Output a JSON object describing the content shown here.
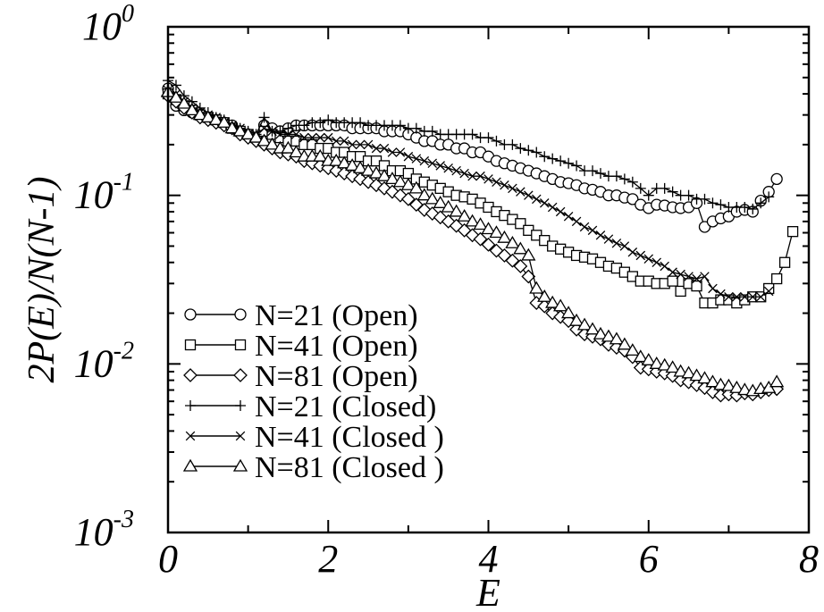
{
  "chart_data": {
    "type": "line",
    "title": "",
    "xlabel": "E",
    "ylabel": "2P(E)/N(N-1)",
    "xlim": [
      0,
      8
    ],
    "ylim": [
      0.001,
      1
    ],
    "y_scale": "log",
    "grid": false,
    "legend_position": "bottom-left",
    "x_ticks": [
      {
        "value": 0,
        "label": "0"
      },
      {
        "value": 2,
        "label": "2"
      },
      {
        "value": 4,
        "label": "4"
      },
      {
        "value": 6,
        "label": "6"
      },
      {
        "value": 8,
        "label": "8"
      }
    ],
    "y_ticks": [
      {
        "value": 1,
        "base": "10",
        "exp": "0"
      },
      {
        "value": 0.1,
        "base": "10",
        "exp": "-1"
      },
      {
        "value": 0.01,
        "base": "10",
        "exp": "-2"
      },
      {
        "value": 0.001,
        "base": "10",
        "exp": "-3"
      }
    ],
    "series": [
      {
        "name": "N=21 (Open)",
        "marker": "circle",
        "x": [
          0.0,
          0.1,
          0.2,
          0.3,
          0.4,
          0.5,
          0.6,
          0.7,
          0.8,
          0.9,
          1.0,
          1.1,
          1.2,
          1.3,
          1.4,
          1.5,
          1.6,
          1.7,
          1.8,
          1.9,
          2.0,
          2.1,
          2.2,
          2.3,
          2.4,
          2.5,
          2.6,
          2.7,
          2.8,
          2.9,
          3.0,
          3.1,
          3.2,
          3.3,
          3.4,
          3.5,
          3.6,
          3.7,
          3.8,
          3.9,
          4.0,
          4.1,
          4.2,
          4.3,
          4.4,
          4.5,
          4.6,
          4.7,
          4.8,
          4.9,
          5.0,
          5.1,
          5.2,
          5.3,
          5.4,
          5.5,
          5.6,
          5.7,
          5.8,
          5.9,
          6.0,
          6.1,
          6.2,
          6.3,
          6.4,
          6.5,
          6.6,
          6.7,
          6.8,
          6.9,
          7.0,
          7.1,
          7.2,
          7.3,
          7.4,
          7.5,
          7.6
        ],
        "values": [
          0.43,
          0.34,
          0.32,
          0.31,
          0.3,
          0.29,
          0.28,
          0.27,
          0.26,
          0.24,
          0.23,
          0.22,
          0.26,
          0.25,
          0.24,
          0.25,
          0.26,
          0.26,
          0.26,
          0.26,
          0.26,
          0.26,
          0.26,
          0.25,
          0.25,
          0.25,
          0.25,
          0.24,
          0.24,
          0.24,
          0.23,
          0.22,
          0.21,
          0.21,
          0.2,
          0.2,
          0.19,
          0.19,
          0.18,
          0.18,
          0.17,
          0.16,
          0.155,
          0.15,
          0.145,
          0.14,
          0.135,
          0.13,
          0.125,
          0.12,
          0.118,
          0.115,
          0.11,
          0.108,
          0.105,
          0.1,
          0.1,
          0.097,
          0.095,
          0.088,
          0.084,
          0.088,
          0.087,
          0.085,
          0.084,
          0.085,
          0.09,
          0.065,
          0.07,
          0.073,
          0.075,
          0.08,
          0.082,
          0.08,
          0.093,
          0.105,
          0.125
        ]
      },
      {
        "name": "N=41 (Open)",
        "marker": "square",
        "x": [
          0.0,
          0.1,
          0.2,
          0.3,
          0.4,
          0.5,
          0.6,
          0.7,
          0.8,
          0.9,
          1.0,
          1.1,
          1.2,
          1.3,
          1.4,
          1.5,
          1.6,
          1.7,
          1.8,
          1.9,
          2.0,
          2.1,
          2.2,
          2.3,
          2.4,
          2.5,
          2.6,
          2.7,
          2.8,
          2.9,
          3.0,
          3.1,
          3.2,
          3.3,
          3.4,
          3.5,
          3.6,
          3.7,
          3.8,
          3.9,
          4.0,
          4.1,
          4.2,
          4.3,
          4.4,
          4.5,
          4.6,
          4.7,
          4.8,
          4.9,
          5.0,
          5.1,
          5.2,
          5.3,
          5.4,
          5.5,
          5.6,
          5.7,
          5.8,
          5.9,
          6.0,
          6.1,
          6.2,
          6.3,
          6.4,
          6.5,
          6.6,
          6.7,
          6.8,
          6.9,
          7.0,
          7.1,
          7.2,
          7.3,
          7.4,
          7.5,
          7.6,
          7.7,
          7.8
        ],
        "values": [
          0.4,
          0.37,
          0.34,
          0.32,
          0.3,
          0.29,
          0.28,
          0.27,
          0.25,
          0.24,
          0.23,
          0.22,
          0.24,
          0.23,
          0.22,
          0.21,
          0.21,
          0.2,
          0.2,
          0.19,
          0.19,
          0.18,
          0.18,
          0.17,
          0.17,
          0.16,
          0.16,
          0.15,
          0.14,
          0.14,
          0.135,
          0.125,
          0.12,
          0.115,
          0.11,
          0.105,
          0.1,
          0.098,
          0.095,
          0.09,
          0.085,
          0.08,
          0.076,
          0.072,
          0.068,
          0.062,
          0.058,
          0.054,
          0.05,
          0.048,
          0.046,
          0.044,
          0.043,
          0.042,
          0.04,
          0.038,
          0.037,
          0.035,
          0.033,
          0.031,
          0.031,
          0.03,
          0.03,
          0.031,
          0.027,
          0.03,
          0.029,
          0.023,
          0.023,
          0.024,
          0.024,
          0.023,
          0.024,
          0.025,
          0.025,
          0.028,
          0.032,
          0.04,
          0.061
        ]
      },
      {
        "name": "N=81 (Open)",
        "marker": "diamond",
        "x": [
          0.0,
          0.1,
          0.2,
          0.3,
          0.4,
          0.5,
          0.6,
          0.7,
          0.8,
          0.9,
          1.0,
          1.1,
          1.2,
          1.3,
          1.4,
          1.5,
          1.6,
          1.7,
          1.8,
          1.9,
          2.0,
          2.1,
          2.2,
          2.3,
          2.4,
          2.5,
          2.6,
          2.7,
          2.8,
          2.9,
          3.0,
          3.1,
          3.2,
          3.3,
          3.4,
          3.5,
          3.6,
          3.7,
          3.8,
          3.9,
          4.0,
          4.1,
          4.2,
          4.3,
          4.4,
          4.5,
          4.6,
          4.7,
          4.8,
          4.9,
          5.0,
          5.1,
          5.2,
          5.3,
          5.4,
          5.5,
          5.6,
          5.7,
          5.8,
          5.9,
          6.0,
          6.1,
          6.2,
          6.3,
          6.4,
          6.5,
          6.6,
          6.7,
          6.8,
          6.9,
          7.0,
          7.1,
          7.2,
          7.3,
          7.4,
          7.5,
          7.6
        ],
        "values": [
          0.39,
          0.36,
          0.33,
          0.31,
          0.29,
          0.28,
          0.27,
          0.26,
          0.25,
          0.23,
          0.22,
          0.21,
          0.2,
          0.19,
          0.18,
          0.175,
          0.17,
          0.16,
          0.155,
          0.15,
          0.145,
          0.14,
          0.135,
          0.13,
          0.125,
          0.12,
          0.115,
          0.11,
          0.105,
          0.1,
          0.095,
          0.088,
          0.082,
          0.078,
          0.074,
          0.07,
          0.066,
          0.062,
          0.058,
          0.055,
          0.051,
          0.047,
          0.044,
          0.041,
          0.038,
          0.033,
          0.023,
          0.022,
          0.02,
          0.019,
          0.018,
          0.016,
          0.015,
          0.0145,
          0.014,
          0.013,
          0.0125,
          0.012,
          0.011,
          0.0095,
          0.0093,
          0.009,
          0.0088,
          0.0085,
          0.008,
          0.0078,
          0.0075,
          0.0072,
          0.0068,
          0.0065,
          0.0066,
          0.0065,
          0.0067,
          0.0066,
          0.0068,
          0.007,
          0.0071
        ]
      },
      {
        "name": "N=21 (Closed)",
        "marker": "plus",
        "x": [
          0.0,
          0.1,
          0.2,
          0.3,
          0.4,
          0.5,
          0.6,
          0.7,
          0.8,
          0.9,
          1.0,
          1.1,
          1.2,
          1.3,
          1.4,
          1.5,
          1.6,
          1.7,
          1.8,
          1.9,
          2.0,
          2.1,
          2.2,
          2.3,
          2.4,
          2.5,
          2.6,
          2.7,
          2.8,
          2.9,
          3.0,
          3.1,
          3.2,
          3.3,
          3.4,
          3.5,
          3.6,
          3.7,
          3.8,
          3.9,
          4.0,
          4.1,
          4.2,
          4.3,
          4.4,
          4.5,
          4.6,
          4.7,
          4.8,
          4.9,
          5.0,
          5.1,
          5.2,
          5.3,
          5.4,
          5.5,
          5.6,
          5.7,
          5.8,
          5.9,
          6.0,
          6.1,
          6.2,
          6.3,
          6.4,
          6.5,
          6.6,
          6.7,
          6.8,
          6.9,
          7.0,
          7.1,
          7.2,
          7.3,
          7.4,
          7.5
        ],
        "values": [
          0.48,
          0.45,
          0.39,
          0.36,
          0.33,
          0.31,
          0.29,
          0.28,
          0.26,
          0.25,
          0.24,
          0.23,
          0.29,
          0.24,
          0.24,
          0.25,
          0.26,
          0.26,
          0.27,
          0.27,
          0.28,
          0.27,
          0.27,
          0.27,
          0.27,
          0.26,
          0.26,
          0.26,
          0.26,
          0.26,
          0.25,
          0.25,
          0.24,
          0.24,
          0.23,
          0.23,
          0.23,
          0.23,
          0.23,
          0.22,
          0.22,
          0.21,
          0.2,
          0.2,
          0.19,
          0.185,
          0.18,
          0.17,
          0.165,
          0.16,
          0.155,
          0.15,
          0.14,
          0.14,
          0.135,
          0.13,
          0.13,
          0.125,
          0.12,
          0.11,
          0.1,
          0.11,
          0.11,
          0.105,
          0.1,
          0.1,
          0.095,
          0.095,
          0.09,
          0.088,
          0.085,
          0.085,
          0.085,
          0.083,
          0.09,
          0.098
        ]
      },
      {
        "name": "N=41 (Closed )",
        "marker": "cross",
        "x": [
          0.0,
          0.1,
          0.2,
          0.3,
          0.4,
          0.5,
          0.6,
          0.7,
          0.8,
          0.9,
          1.0,
          1.1,
          1.2,
          1.3,
          1.4,
          1.5,
          1.6,
          1.7,
          1.8,
          1.9,
          2.0,
          2.1,
          2.2,
          2.3,
          2.4,
          2.5,
          2.6,
          2.7,
          2.8,
          2.9,
          3.0,
          3.1,
          3.2,
          3.3,
          3.4,
          3.5,
          3.6,
          3.7,
          3.8,
          3.9,
          4.0,
          4.1,
          4.2,
          4.3,
          4.4,
          4.5,
          4.6,
          4.7,
          4.8,
          4.9,
          5.0,
          5.1,
          5.2,
          5.3,
          5.4,
          5.5,
          5.6,
          5.7,
          5.8,
          5.9,
          6.0,
          6.1,
          6.2,
          6.3,
          6.4,
          6.5,
          6.6,
          6.7,
          6.8,
          6.9,
          7.0,
          7.1,
          7.2,
          7.3,
          7.4,
          7.5
        ],
        "values": [
          0.42,
          0.4,
          0.36,
          0.33,
          0.31,
          0.3,
          0.29,
          0.27,
          0.26,
          0.25,
          0.23,
          0.23,
          0.25,
          0.24,
          0.23,
          0.23,
          0.23,
          0.22,
          0.22,
          0.22,
          0.22,
          0.21,
          0.21,
          0.2,
          0.2,
          0.2,
          0.19,
          0.19,
          0.18,
          0.18,
          0.17,
          0.165,
          0.16,
          0.155,
          0.15,
          0.145,
          0.14,
          0.135,
          0.13,
          0.13,
          0.125,
          0.12,
          0.115,
          0.11,
          0.105,
          0.1,
          0.095,
          0.09,
          0.085,
          0.08,
          0.075,
          0.07,
          0.065,
          0.062,
          0.058,
          0.055,
          0.052,
          0.05,
          0.046,
          0.044,
          0.042,
          0.04,
          0.038,
          0.035,
          0.034,
          0.033,
          0.032,
          0.033,
          0.028,
          0.026,
          0.025,
          0.025,
          0.025,
          0.025,
          0.025,
          0.027
        ]
      },
      {
        "name": "N=81 (Closed )",
        "marker": "triangle",
        "x": [
          0.0,
          0.1,
          0.2,
          0.3,
          0.4,
          0.5,
          0.6,
          0.7,
          0.8,
          0.9,
          1.0,
          1.1,
          1.2,
          1.3,
          1.4,
          1.5,
          1.6,
          1.7,
          1.8,
          1.9,
          2.0,
          2.1,
          2.2,
          2.3,
          2.4,
          2.5,
          2.6,
          2.7,
          2.8,
          2.9,
          3.0,
          3.1,
          3.2,
          3.3,
          3.4,
          3.5,
          3.6,
          3.7,
          3.8,
          3.9,
          4.0,
          4.1,
          4.2,
          4.3,
          4.4,
          4.5,
          4.6,
          4.7,
          4.8,
          4.9,
          5.0,
          5.1,
          5.2,
          5.3,
          5.4,
          5.5,
          5.6,
          5.7,
          5.8,
          5.9,
          6.0,
          6.1,
          6.2,
          6.3,
          6.4,
          6.5,
          6.6,
          6.7,
          6.8,
          6.9,
          7.0,
          7.1,
          7.2,
          7.3,
          7.4,
          7.5,
          7.6
        ],
        "values": [
          0.41,
          0.38,
          0.35,
          0.32,
          0.3,
          0.29,
          0.28,
          0.27,
          0.25,
          0.24,
          0.23,
          0.22,
          0.21,
          0.2,
          0.19,
          0.19,
          0.18,
          0.17,
          0.17,
          0.17,
          0.16,
          0.16,
          0.155,
          0.15,
          0.145,
          0.14,
          0.135,
          0.13,
          0.125,
          0.12,
          0.115,
          0.11,
          0.1,
          0.095,
          0.09,
          0.085,
          0.08,
          0.075,
          0.07,
          0.067,
          0.063,
          0.06,
          0.056,
          0.052,
          0.048,
          0.044,
          0.028,
          0.025,
          0.023,
          0.022,
          0.02,
          0.018,
          0.017,
          0.016,
          0.015,
          0.0145,
          0.014,
          0.013,
          0.012,
          0.011,
          0.0105,
          0.01,
          0.0098,
          0.0095,
          0.009,
          0.0088,
          0.0085,
          0.0082,
          0.0078,
          0.0075,
          0.0074,
          0.0072,
          0.007,
          0.0069,
          0.0071,
          0.0072,
          0.0078
        ]
      }
    ]
  }
}
